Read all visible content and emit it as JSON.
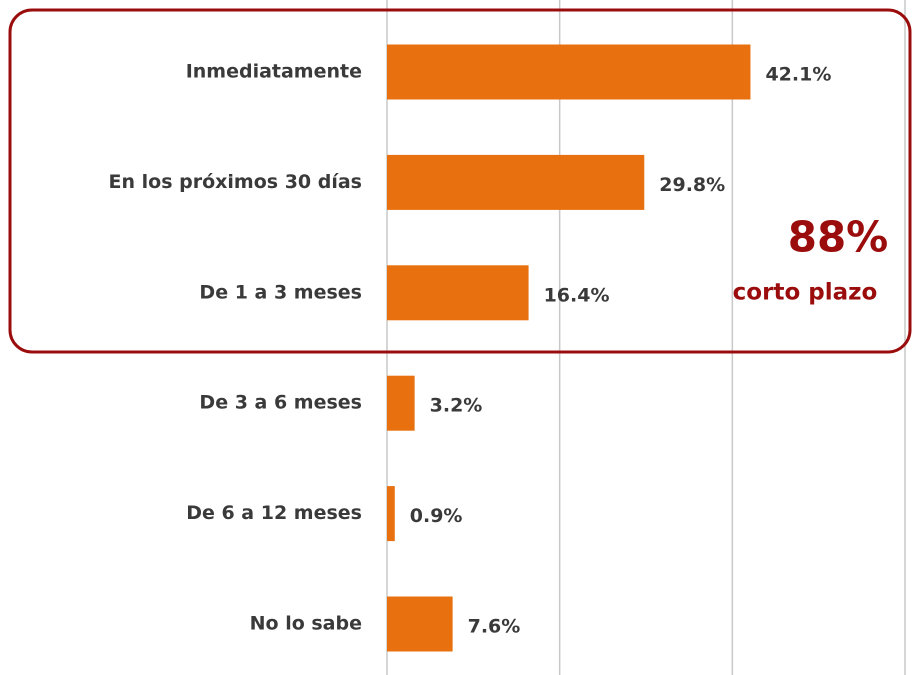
{
  "chart_data": {
    "type": "hbar",
    "categories": [
      "Inmediatamente",
      "En los próximos 30 días",
      "De 1 a 3 meses",
      "De 3 a 6 meses",
      "De 6 a 12 meses",
      "No lo sabe"
    ],
    "values": [
      42.1,
      29.8,
      16.4,
      3.2,
      0.9,
      7.6
    ],
    "value_labels": [
      "42.1%",
      "29.8%",
      "16.4%",
      "3.2%",
      "0.9%",
      "7.6%"
    ],
    "color": "#e8700e",
    "xlim": [
      0,
      60
    ],
    "xticks": [
      0,
      20,
      40,
      60
    ],
    "grid": true,
    "annotations": [
      "88%",
      "corto plazo"
    ]
  }
}
